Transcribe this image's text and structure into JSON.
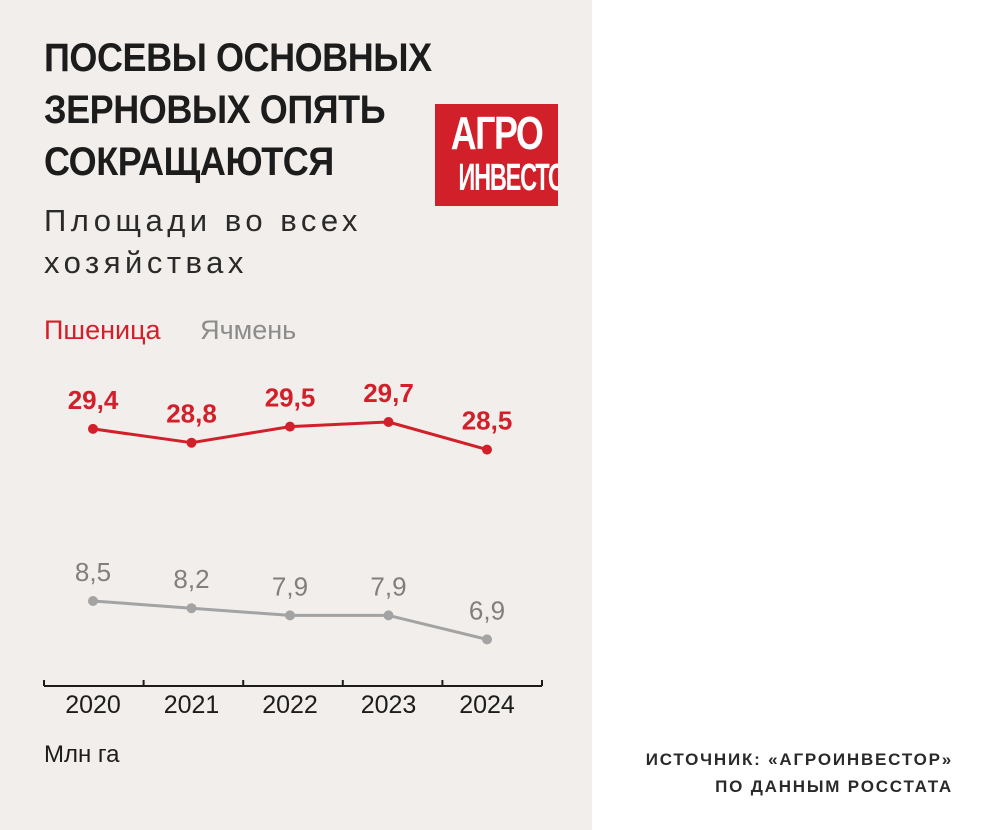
{
  "header": {
    "title_lines": [
      "ПОСЕВЫ ОСНОВНЫХ",
      "ЗЕРНОВЫХ ОПЯТЬ",
      "СОКРАЩАЮТСЯ"
    ],
    "subtitle_lines": [
      "Площади во всех",
      "хозяйствах"
    ]
  },
  "logo": {
    "line1": "АГРО",
    "line2": "ИНВЕСТОР"
  },
  "footer": {
    "unit": "Млн га",
    "source_lines": [
      "ИСТОЧНИК: «АГРОИНВЕСТОР»",
      "ПО ДАННЫМ РОССТАТА"
    ]
  },
  "colors": {
    "background": "#f1eeeb",
    "wheat": "#d2202a",
    "barley": "#a3a3a3",
    "barley_label": "#7f7f7f",
    "axis": "#1c1c1c"
  },
  "chart_data": {
    "type": "line",
    "title": "ПОСЕВЫ ОСНОВНЫХ ЗЕРНОВЫХ ОПЯТЬ СОКРАЩАЮТСЯ",
    "subtitle": "Площади во всех хозяйствах",
    "x": [
      "2020",
      "2021",
      "2022",
      "2023",
      "2024"
    ],
    "xlabel": "",
    "ylabel": "Млн га",
    "grid": false,
    "legend_position": "top-left",
    "series": [
      {
        "name": "Пшеница",
        "values": [
          29.4,
          28.8,
          29.5,
          29.7,
          28.5
        ],
        "labels": [
          "29,4",
          "28,8",
          "29,5",
          "29,7",
          "28,5"
        ]
      },
      {
        "name": "Ячмень",
        "values": [
          8.5,
          8.2,
          7.9,
          7.9,
          6.9
        ],
        "labels": [
          "8,5",
          "8,2",
          "7,9",
          "7,9",
          "6,9"
        ]
      }
    ]
  }
}
